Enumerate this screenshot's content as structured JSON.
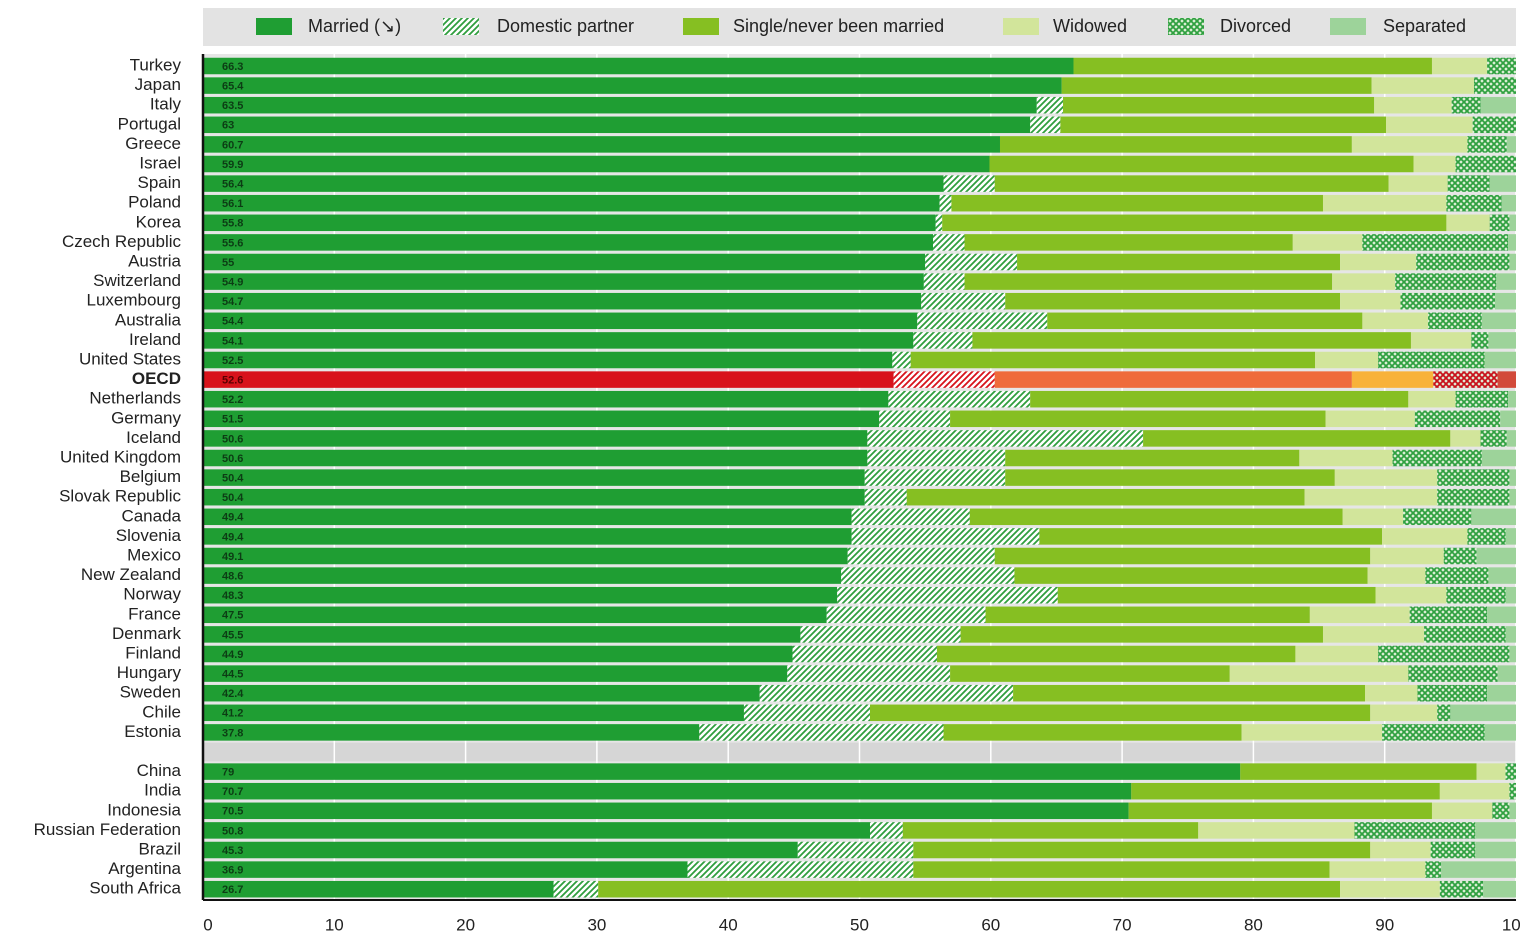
{
  "chart_data": {
    "type": "stacked_barh",
    "categories": [
      "Turkey",
      "Japan",
      "Italy",
      "Portugal",
      "Greece",
      "Israel",
      "Spain",
      "Poland",
      "Korea",
      "Czech Republic",
      "Austria",
      "Switzerland",
      "Luxembourg",
      "Australia",
      "Ireland",
      "United States",
      "OECD",
      "Netherlands",
      "Germany",
      "Iceland",
      "United Kingdom",
      "Belgium",
      "Slovak Republic",
      "Canada",
      "Slovenia",
      "Mexico",
      "New Zealand",
      "Norway",
      "France",
      "Denmark",
      "Finland",
      "Hungary",
      "Sweden",
      "Chile",
      "Estonia",
      "China",
      "India",
      "Indonesia",
      "Russian Federation",
      "Brazil",
      "Argentina",
      "South Africa"
    ],
    "highlight": "OECD",
    "series": [
      {
        "name": "Married (↘)",
        "color": "#1f9e33",
        "highlight_color": "#d8121b",
        "pattern": "solid",
        "value_labels_shown": true,
        "values": [
          66.3,
          65.4,
          63.5,
          63.0,
          60.7,
          59.9,
          56.4,
          56.1,
          55.8,
          55.6,
          55.0,
          54.9,
          54.7,
          54.4,
          54.1,
          52.5,
          52.6,
          52.2,
          51.5,
          50.6,
          50.6,
          50.4,
          50.4,
          49.4,
          49.4,
          49.1,
          48.6,
          48.3,
          47.5,
          45.5,
          44.9,
          44.5,
          42.4,
          41.2,
          37.8,
          79.0,
          70.7,
          70.5,
          50.8,
          45.3,
          36.9,
          26.7
        ]
      },
      {
        "name": "Domestic partner",
        "color": "#2f9e3e",
        "highlight_color": "#d8121b",
        "pattern": "hatch",
        "values": [
          0,
          0,
          2.0,
          2.3,
          0,
          0,
          3.9,
          0.9,
          0.5,
          2.4,
          7.0,
          3.1,
          6.4,
          9.9,
          4.5,
          1.4,
          7.7,
          10.8,
          5.4,
          21.0,
          10.5,
          10.7,
          3.2,
          9.0,
          14.3,
          11.2,
          13.2,
          16.8,
          12.1,
          12.2,
          11.0,
          12.4,
          19.3,
          9.6,
          18.6,
          0,
          0,
          0,
          2.5,
          8.8,
          17.2,
          3.4
        ]
      },
      {
        "name": "Single/never been married",
        "color": "#86bf22",
        "highlight_color": "#ef6b3b",
        "pattern": "solid",
        "values": [
          27.3,
          23.6,
          23.7,
          24.8,
          26.8,
          32.3,
          30.0,
          28.3,
          38.4,
          25.0,
          24.6,
          28.0,
          25.5,
          24.0,
          33.4,
          30.8,
          27.2,
          28.8,
          28.6,
          23.4,
          22.4,
          25.1,
          30.3,
          28.4,
          26.1,
          28.6,
          26.9,
          24.2,
          24.7,
          27.6,
          27.3,
          21.3,
          26.8,
          38.1,
          22.7,
          18.0,
          23.5,
          23.1,
          22.5,
          34.8,
          31.7,
          56.5
        ]
      },
      {
        "name": "Widowed",
        "color": "#d2e59b",
        "highlight_color": "#f8b23a",
        "pattern": "solid",
        "values": [
          4.2,
          7.8,
          5.9,
          6.6,
          8.8,
          3.2,
          4.5,
          9.4,
          3.3,
          5.3,
          5.8,
          4.8,
          4.6,
          5.0,
          4.6,
          4.8,
          6.2,
          3.6,
          6.8,
          2.3,
          7.1,
          7.8,
          10.1,
          4.6,
          6.5,
          5.6,
          4.4,
          5.4,
          7.6,
          7.7,
          6.3,
          13.6,
          4.0,
          5.1,
          10.7,
          2.2,
          5.3,
          4.6,
          11.9,
          4.6,
          7.3,
          7.6
        ]
      },
      {
        "name": "Divorced",
        "color": "#2fa040",
        "highlight_color": "#c8101a",
        "pattern": "cross",
        "values": [
          2.2,
          3.2,
          2.2,
          3.3,
          3.0,
          4.6,
          3.2,
          4.2,
          1.5,
          11.1,
          7.1,
          7.7,
          7.2,
          4.1,
          1.3,
          8.1,
          4.9,
          4.0,
          6.5,
          2.0,
          6.8,
          5.5,
          5.5,
          5.2,
          2.9,
          2.5,
          4.8,
          4.5,
          5.9,
          6.2,
          10.0,
          6.8,
          5.3,
          1.0,
          7.8,
          0.8,
          0.5,
          1.3,
          9.2,
          3.4,
          1.2,
          3.3
        ]
      },
      {
        "name": "Separated",
        "color": "#9dd39a",
        "highlight_color": "#d24a3a",
        "pattern": "solid",
        "values": [
          0,
          0,
          2.7,
          0,
          0.7,
          0,
          2.0,
          1.1,
          0.5,
          0.6,
          0.5,
          1.5,
          1.6,
          2.6,
          2.1,
          2.4,
          1.4,
          0.6,
          1.2,
          0.7,
          2.6,
          0.5,
          0.5,
          3.4,
          0.8,
          3.0,
          2.1,
          0.8,
          2.2,
          0.8,
          0.5,
          1.4,
          2.2,
          5.0,
          2.4,
          0,
          0,
          0.5,
          3.1,
          3.1,
          5.7,
          2.5
        ]
      }
    ],
    "xlim": [
      0,
      100
    ],
    "xticks": [
      0,
      10,
      20,
      30,
      40,
      50,
      60,
      70,
      80,
      90,
      100
    ],
    "grid": true
  }
}
